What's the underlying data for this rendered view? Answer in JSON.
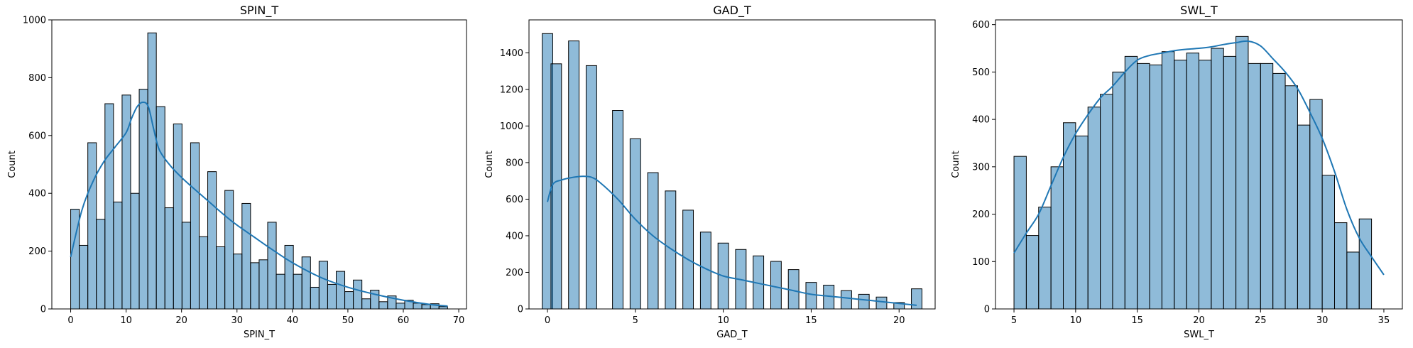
{
  "chart_data": [
    {
      "type": "bar",
      "title": "SPIN_T",
      "xlabel": "SPIN_T",
      "ylabel": "Count",
      "xlim": [
        -3.4,
        71.4
      ],
      "ylim": [
        0,
        1000
      ],
      "xticks": [
        0,
        10,
        20,
        30,
        40,
        50,
        60,
        70
      ],
      "yticks": [
        0,
        200,
        400,
        600,
        800,
        1000
      ],
      "bin_start": 0,
      "bin_width": 1.545,
      "values": [
        345,
        220,
        575,
        310,
        710,
        370,
        740,
        400,
        760,
        955,
        700,
        350,
        640,
        300,
        575,
        250,
        475,
        215,
        410,
        190,
        365,
        160,
        170,
        300,
        120,
        220,
        120,
        180,
        75,
        165,
        85,
        130,
        60,
        100,
        35,
        65,
        25,
        45,
        20,
        30,
        20,
        15,
        18,
        8
      ],
      "kde": {
        "x": [
          0,
          2,
          4,
          6,
          8,
          10,
          11,
          12,
          13,
          14,
          15,
          16,
          18,
          20,
          22,
          25,
          28,
          30,
          33,
          36,
          40,
          45,
          50,
          55,
          60,
          65,
          68
        ],
        "y": [
          180,
          340,
          440,
          510,
          560,
          610,
          660,
          700,
          715,
          700,
          620,
          550,
          495,
          455,
          420,
          370,
          320,
          290,
          250,
          210,
          160,
          110,
          75,
          50,
          30,
          15,
          10
        ]
      },
      "series": [
        {
          "values": []
        }
      ]
    },
    {
      "type": "bar",
      "title": "GAD_T",
      "xlabel": "GAD_T",
      "ylabel": "Count",
      "xlim": [
        -1.05,
        22.05
      ],
      "ylim": [
        0,
        1580
      ],
      "xticks": [
        0,
        5,
        10,
        15,
        20
      ],
      "yticks": [
        0,
        200,
        400,
        600,
        800,
        1000,
        1200,
        1400
      ],
      "bin_start": -0.3,
      "bin_width": 0.6,
      "centers": [
        0,
        0.5,
        1.5,
        2.5,
        4,
        5,
        6,
        7,
        8,
        9,
        10,
        11,
        12,
        13,
        14,
        15,
        16,
        17,
        18,
        19,
        20,
        21
      ],
      "values": [
        1505,
        1340,
        1465,
        1330,
        1085,
        930,
        745,
        645,
        540,
        420,
        360,
        325,
        290,
        260,
        215,
        145,
        130,
        100,
        80,
        65,
        35,
        110
      ],
      "kde": {
        "x": [
          0,
          0.3,
          0.8,
          1.5,
          2,
          2.5,
          3,
          4,
          5,
          6,
          7,
          8,
          9,
          10,
          11,
          12,
          13,
          14,
          15,
          16,
          17,
          18,
          19,
          20,
          21
        ],
        "y": [
          585,
          680,
          705,
          720,
          725,
          720,
          690,
          600,
          490,
          400,
          330,
          270,
          220,
          180,
          160,
          140,
          120,
          100,
          80,
          70,
          60,
          50,
          40,
          30,
          20
        ]
      }
    },
    {
      "type": "bar",
      "title": "SWL_T",
      "xlabel": "SWL_T",
      "ylabel": "Count",
      "xlim": [
        3.5,
        36.5
      ],
      "ylim": [
        0,
        610
      ],
      "xticks": [
        5,
        10,
        15,
        20,
        25,
        30,
        35
      ],
      "yticks": [
        0,
        100,
        200,
        300,
        400,
        500,
        600
      ],
      "bin_start": 5,
      "bin_width": 1.0,
      "values": [
        322,
        155,
        215,
        300,
        393,
        365,
        426,
        453,
        500,
        533,
        518,
        515,
        543,
        525,
        540,
        525,
        550,
        533,
        575,
        518,
        518,
        497,
        471,
        388,
        442,
        282,
        182,
        120,
        190
      ],
      "kde": {
        "x": [
          5,
          6,
          7,
          8,
          9,
          10,
          11,
          12,
          13,
          14,
          15,
          16,
          17,
          18,
          19,
          20,
          21,
          22,
          23,
          24,
          25,
          26,
          27,
          28,
          29,
          30,
          31,
          32,
          33,
          34,
          35
        ],
        "y": [
          118,
          160,
          200,
          260,
          320,
          370,
          410,
          445,
          470,
          500,
          525,
          535,
          540,
          545,
          548,
          550,
          553,
          558,
          562,
          565,
          555,
          528,
          500,
          465,
          415,
          360,
          290,
          210,
          150,
          110,
          72
        ]
      }
    }
  ]
}
